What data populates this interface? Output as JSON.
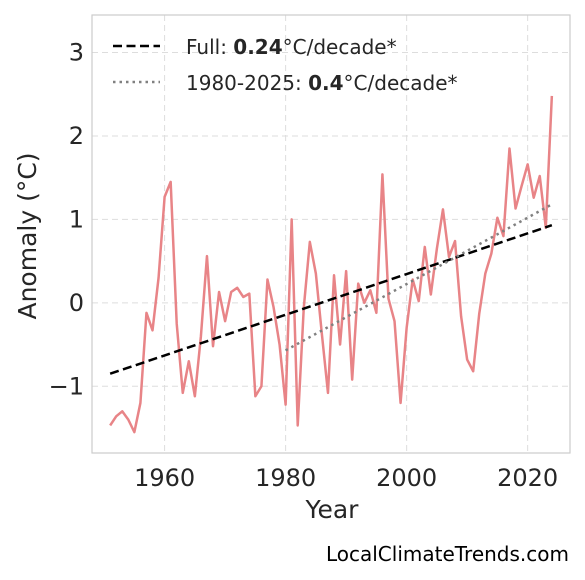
{
  "chart_data": {
    "type": "line",
    "xlabel": "Year",
    "ylabel": "Anomaly (°C)",
    "xlim": [
      1948,
      2027
    ],
    "ylim": [
      -1.8,
      3.45
    ],
    "x_ticks": [
      1960,
      1980,
      2000,
      2020
    ],
    "y_ticks": [
      -1,
      0,
      1,
      2,
      3
    ],
    "y_tick_labels": [
      "−1",
      "0",
      "1",
      "2",
      "3"
    ],
    "grid": true,
    "legend_position": "top-left",
    "series": [
      {
        "style": "solid",
        "color": "#e88487",
        "x": [
          1951,
          1952,
          1953,
          1954,
          1955,
          1956,
          1957,
          1958,
          1959,
          1960,
          1961,
          1962,
          1963,
          1964,
          1965,
          1966,
          1967,
          1968,
          1969,
          1970,
          1971,
          1972,
          1973,
          1974,
          1975,
          1976,
          1977,
          1978,
          1979,
          1980,
          1981,
          1982,
          1983,
          1984,
          1985,
          1986,
          1987,
          1988,
          1989,
          1990,
          1991,
          1992,
          1993,
          1994,
          1995,
          1996,
          1997,
          1998,
          1999,
          2000,
          2001,
          2002,
          2003,
          2004,
          2005,
          2006,
          2007,
          2008,
          2009,
          2010,
          2011,
          2012,
          2013,
          2014,
          2015,
          2016,
          2017,
          2018,
          2019,
          2020,
          2021,
          2022,
          2023,
          2024
        ],
        "y": [
          -1.47,
          -1.36,
          -1.3,
          -1.4,
          -1.55,
          -1.2,
          -0.12,
          -0.33,
          0.3,
          1.27,
          1.45,
          -0.25,
          -1.08,
          -0.7,
          -1.12,
          -0.4,
          0.56,
          -0.52,
          0.13,
          -0.22,
          0.13,
          0.18,
          0.07,
          0.11,
          -1.12,
          -1.0,
          0.28,
          -0.05,
          -0.5,
          -1.22,
          1.0,
          -1.47,
          -0.06,
          0.73,
          0.35,
          -0.38,
          -1.08,
          0.33,
          -0.5,
          0.38,
          -0.92,
          0.23,
          0.0,
          0.15,
          -0.12,
          1.54,
          0.05,
          -0.22,
          -1.2,
          -0.3,
          0.28,
          0.02,
          0.67,
          0.1,
          0.65,
          1.12,
          0.55,
          0.74,
          -0.16,
          -0.68,
          -0.82,
          -0.13,
          0.35,
          0.59,
          1.02,
          0.8,
          1.85,
          1.13,
          1.4,
          1.66,
          1.26,
          1.52,
          0.9,
          2.48
        ]
      },
      {
        "name": "Full: 0.24°C/decade*",
        "style": "dashed",
        "color": "#000000",
        "x": [
          1951,
          2024
        ],
        "y": [
          -0.85,
          0.93
        ]
      },
      {
        "name": "1980-2025: 0.4°C/decade*",
        "style": "dotted",
        "color": "#808080",
        "x": [
          1980,
          2024
        ],
        "y": [
          -0.57,
          1.18
        ]
      }
    ]
  },
  "legend": {
    "items": [
      {
        "prefix": "Full: ",
        "value": "0.24",
        "suffix": "°C/decade*",
        "style": "dashed",
        "color": "#000000"
      },
      {
        "prefix": "1980-2025: ",
        "value": "0.4",
        "suffix": "°C/decade*",
        "style": "dotted",
        "color": "#808080"
      }
    ]
  },
  "watermark": "LocalClimateTrends.com"
}
